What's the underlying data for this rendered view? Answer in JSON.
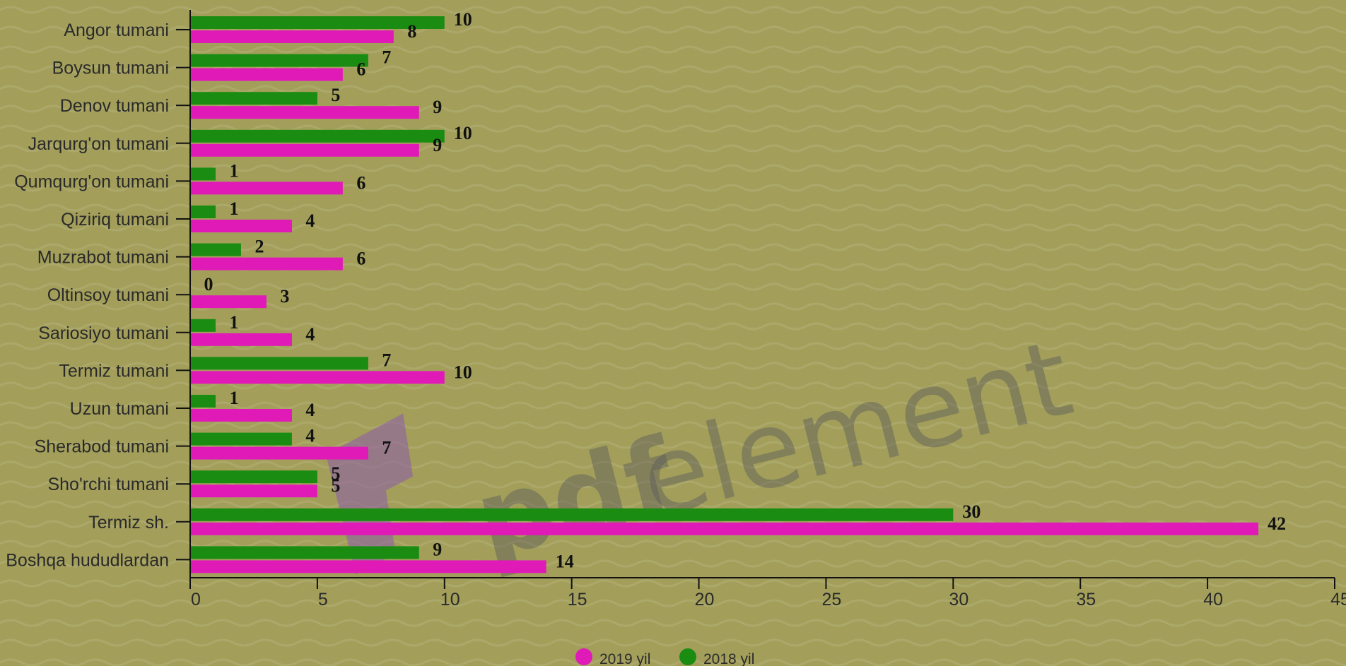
{
  "chart_data": {
    "type": "bar",
    "orientation": "horizontal",
    "categories": [
      "Angor tumani",
      "Boysun tumani",
      "Denov tumani",
      "Jarqurg'on tumani",
      "Qumqurg'on tumani",
      "Qiziriq tumani",
      "Muzrabot tumani",
      "Oltinsoy tumani",
      "Sariosiyo tumani",
      "Termiz tumani",
      "Uzun tumani",
      "Sherabod tumani",
      "Sho'rchi tumani",
      "Termiz sh.",
      "Boshqa hududlardan"
    ],
    "series": [
      {
        "name": "2018 yil",
        "color": "#1b8c12",
        "values": [
          10,
          7,
          5,
          10,
          1,
          1,
          2,
          0,
          1,
          7,
          1,
          4,
          5,
          30,
          9
        ]
      },
      {
        "name": "2019 yil",
        "color": "#e01ab7",
        "values": [
          8,
          6,
          9,
          9,
          6,
          4,
          6,
          3,
          4,
          10,
          4,
          7,
          5,
          42,
          14
        ]
      }
    ],
    "xlim": [
      0,
      45
    ],
    "xticks": [
      0,
      5,
      10,
      15,
      20,
      25,
      30,
      35,
      40,
      45
    ],
    "grid": false,
    "legend_position": "bottom",
    "legend_order": [
      "2019 yil",
      "2018 yil"
    ]
  },
  "watermark": {
    "text_bold": "pdf",
    "text_light": "element"
  },
  "colors": {
    "background": "#a39f5b",
    "axis": "#111111"
  }
}
